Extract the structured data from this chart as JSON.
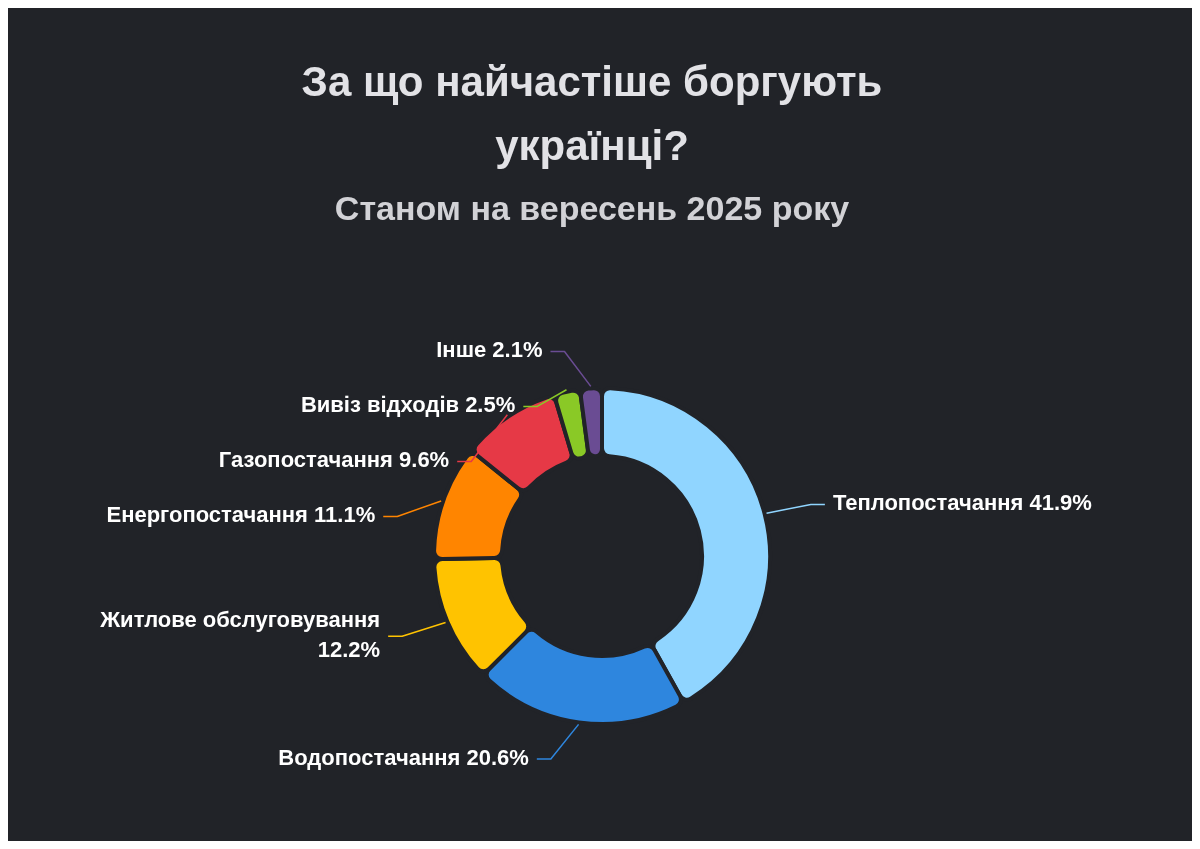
{
  "chart_data": {
    "type": "donut",
    "title": "За що найчастіше боргують українці?",
    "subtitle": "Станом на вересень 2025 року",
    "categories": [
      "Теплопостачання",
      "Водопостачання",
      "Житлове обслуговування",
      "Енергопостачання",
      "Газопостачання",
      "Вивіз відходів",
      "Інше"
    ],
    "values": [
      41.9,
      20.6,
      12.2,
      11.1,
      9.6,
      2.5,
      2.1
    ],
    "value_labels": [
      "41.9%",
      "20.6%",
      "12.2%",
      "11.1%",
      "9.6%",
      "2.5%",
      "2.1%"
    ],
    "colors": [
      "#90d5ff",
      "#2e86de",
      "#ffc300",
      "#ff8500",
      "#e63946",
      "#8ac926",
      "#6a4c93"
    ]
  }
}
